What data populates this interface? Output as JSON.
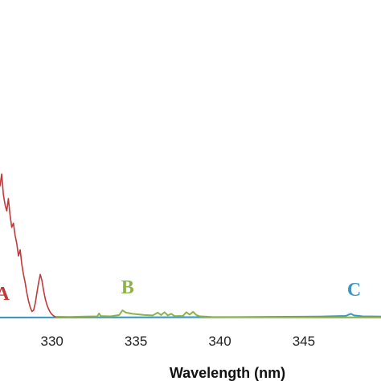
{
  "chart_data": {
    "type": "line",
    "xlabel": "Wavelength (nm)",
    "ylabel": "",
    "xlim": [
      326.9,
      349.6
    ],
    "ylim": [
      0,
      100
    ],
    "x_ticks": [
      "330",
      "335",
      "340",
      "345"
    ],
    "grid": false,
    "series": [
      {
        "name": "A",
        "color": "#c0393b",
        "points": [
          [
            326.9,
            64
          ],
          [
            327.0,
            70
          ],
          [
            327.1,
            60
          ],
          [
            327.2,
            55
          ],
          [
            327.3,
            52
          ],
          [
            327.4,
            58
          ],
          [
            327.5,
            50
          ],
          [
            327.6,
            44
          ],
          [
            327.7,
            46
          ],
          [
            327.8,
            40
          ],
          [
            327.9,
            36
          ],
          [
            328.0,
            30
          ],
          [
            328.1,
            33
          ],
          [
            328.2,
            26
          ],
          [
            328.3,
            21
          ],
          [
            328.4,
            17
          ],
          [
            328.5,
            12
          ],
          [
            328.6,
            8
          ],
          [
            328.7,
            5
          ],
          [
            328.8,
            3
          ],
          [
            328.9,
            3.5
          ],
          [
            329.0,
            7
          ],
          [
            329.1,
            12
          ],
          [
            329.2,
            17
          ],
          [
            329.3,
            21
          ],
          [
            329.4,
            18
          ],
          [
            329.5,
            13
          ],
          [
            329.6,
            9
          ],
          [
            329.7,
            6
          ],
          [
            329.8,
            4
          ],
          [
            329.9,
            2.5
          ],
          [
            330.0,
            1.5
          ],
          [
            330.1,
            0.8
          ],
          [
            330.2,
            0.3
          ]
        ]
      },
      {
        "name": "B",
        "color": "#8db348",
        "points": [
          [
            330.2,
            0.4
          ],
          [
            331.0,
            0.3
          ],
          [
            332.0,
            0.5
          ],
          [
            332.7,
            0.6
          ],
          [
            332.8,
            2
          ],
          [
            332.9,
            0.7
          ],
          [
            333.5,
            0.6
          ],
          [
            334.0,
            1.2
          ],
          [
            334.2,
            3.5
          ],
          [
            334.4,
            2.4
          ],
          [
            334.8,
            1.8
          ],
          [
            335.5,
            1.2
          ],
          [
            336.0,
            1.0
          ],
          [
            336.3,
            2.4
          ],
          [
            336.5,
            1.2
          ],
          [
            336.7,
            2.6
          ],
          [
            336.9,
            1.0
          ],
          [
            337.1,
            1.8
          ],
          [
            337.3,
            0.7
          ],
          [
            337.8,
            0.8
          ],
          [
            338.0,
            2.6
          ],
          [
            338.2,
            1.4
          ],
          [
            338.4,
            2.8
          ],
          [
            338.6,
            1.2
          ],
          [
            338.8,
            0.6
          ],
          [
            339.5,
            0.3
          ],
          [
            341.0,
            0.2
          ],
          [
            343.0,
            0.15
          ],
          [
            346.0,
            0.1
          ],
          [
            349.6,
            0.1
          ]
        ]
      },
      {
        "name": "C",
        "color": "#3e96bd",
        "points": [
          [
            326.9,
            0
          ],
          [
            330.0,
            0.05
          ],
          [
            335.0,
            0.1
          ],
          [
            340.0,
            0.2
          ],
          [
            344.0,
            0.4
          ],
          [
            346.0,
            0.5
          ],
          [
            347.5,
            0.8
          ],
          [
            347.8,
            1.8
          ],
          [
            348.0,
            1.0
          ],
          [
            348.5,
            0.6
          ],
          [
            349.6,
            0.5
          ]
        ]
      }
    ],
    "labels": [
      {
        "text": "A",
        "color": "#c0393b"
      },
      {
        "text": "B",
        "color": "#8db348"
      },
      {
        "text": "C",
        "color": "#3e96bd"
      }
    ]
  }
}
